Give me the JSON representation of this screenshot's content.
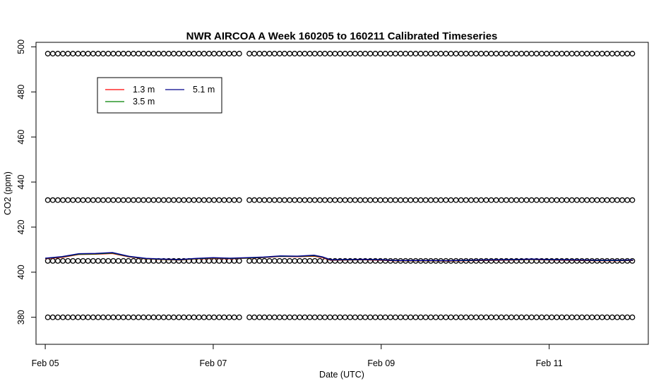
{
  "chart_data": {
    "type": "line",
    "title": "NWR AIRCOA A  Week 160205 to 160211  Calibrated Timeseries",
    "xlabel": "Date (UTC)",
    "ylabel": "CO2 (ppm)",
    "x_unit": "days since Feb 05 00:00 UTC",
    "xlim": [
      -0.11,
      7.18
    ],
    "ylim": [
      368,
      502
    ],
    "x_ticks": [
      {
        "value": 0,
        "label": "Feb 05"
      },
      {
        "value": 2,
        "label": "Feb 07"
      },
      {
        "value": 4,
        "label": "Feb 09"
      },
      {
        "value": 6,
        "label": "Feb 11"
      }
    ],
    "y_ticks": [
      380,
      400,
      420,
      440,
      460,
      480,
      500
    ],
    "grid": false,
    "legend": {
      "position": "top-left",
      "entries": [
        {
          "name": "1.3 m",
          "color": "#ff0000"
        },
        {
          "name": "3.5 m",
          "color": "#008000"
        },
        {
          "name": "5.1 m",
          "color": "#00008b"
        }
      ]
    },
    "series": [
      {
        "name": "1.3 m",
        "color": "#ff0000",
        "x": [
          0,
          0.2,
          0.4,
          0.6,
          0.8,
          1.0,
          1.2,
          1.4,
          1.6,
          1.8,
          2.0,
          2.2,
          2.4,
          2.6,
          2.8,
          3.0,
          3.2,
          3.3,
          3.4,
          3.6,
          3.8,
          4.0,
          4.2,
          4.4,
          4.6,
          4.8,
          5.0,
          5.2,
          5.4,
          5.6,
          5.8,
          6.0,
          6.2,
          6.4,
          6.6,
          6.8,
          7.0
        ],
        "y": [
          406.0,
          406.6,
          407.9,
          408.0,
          408.3,
          406.8,
          405.9,
          405.6,
          405.4,
          405.9,
          406.1,
          406.0,
          406.2,
          406.5,
          407.0,
          406.9,
          407.1,
          406.5,
          405.3,
          405.4,
          405.5,
          405.3,
          405.0,
          405.0,
          405.0,
          404.9,
          405.1,
          405.2,
          405.3,
          405.4,
          405.6,
          405.4,
          405.3,
          405.2,
          405.1,
          405.1,
          405.2
        ]
      },
      {
        "name": "3.5 m",
        "color": "#008000",
        "x": [
          0,
          0.2,
          0.4,
          0.6,
          0.8,
          1.0,
          1.2,
          1.4,
          1.6,
          1.8,
          2.0,
          2.2,
          2.4,
          2.6,
          2.8,
          3.0,
          3.2,
          3.3,
          3.4,
          3.6,
          3.8,
          4.0,
          4.2,
          4.4,
          4.6,
          4.8,
          5.0,
          5.2,
          5.4,
          5.6,
          5.8,
          6.0,
          6.2,
          6.4,
          6.6,
          6.8,
          7.0
        ],
        "y": [
          406.1,
          406.8,
          408.0,
          408.1,
          408.5,
          406.9,
          406.0,
          405.7,
          405.5,
          406.0,
          406.3,
          406.1,
          406.3,
          406.6,
          407.1,
          407.0,
          407.3,
          406.7,
          405.4,
          405.5,
          405.6,
          405.4,
          405.1,
          405.1,
          405.1,
          405.0,
          405.2,
          405.3,
          405.4,
          405.5,
          405.7,
          405.5,
          405.4,
          405.3,
          405.2,
          405.2,
          405.3
        ]
      },
      {
        "name": "5.1 m",
        "color": "#00008b",
        "x": [
          0,
          0.2,
          0.4,
          0.6,
          0.8,
          1.0,
          1.2,
          1.4,
          1.6,
          1.8,
          2.0,
          2.2,
          2.4,
          2.6,
          2.8,
          3.0,
          3.2,
          3.3,
          3.4,
          3.6,
          3.8,
          4.0,
          4.2,
          4.4,
          4.6,
          4.8,
          5.0,
          5.2,
          5.4,
          5.6,
          5.8,
          6.0,
          6.2,
          6.4,
          6.6,
          6.8,
          7.0
        ],
        "y": [
          406.2,
          406.9,
          408.2,
          408.3,
          408.7,
          407.0,
          406.1,
          405.8,
          405.6,
          406.1,
          406.4,
          406.2,
          406.4,
          406.7,
          407.2,
          407.1,
          407.5,
          406.8,
          405.5,
          405.6,
          405.7,
          405.5,
          405.2,
          405.2,
          405.2,
          405.1,
          405.3,
          405.4,
          405.5,
          405.6,
          405.8,
          405.6,
          405.5,
          405.4,
          405.3,
          405.3,
          405.4
        ]
      }
    ],
    "flag_markers": {
      "marker": "open circle",
      "levels": [
        380,
        405,
        432,
        497
      ],
      "x_start": 0.03,
      "x_end": 7.0,
      "x_step": 0.06,
      "gaps": [
        [
          1.78,
          1.82
        ],
        [
          2.33,
          2.43
        ]
      ]
    }
  }
}
